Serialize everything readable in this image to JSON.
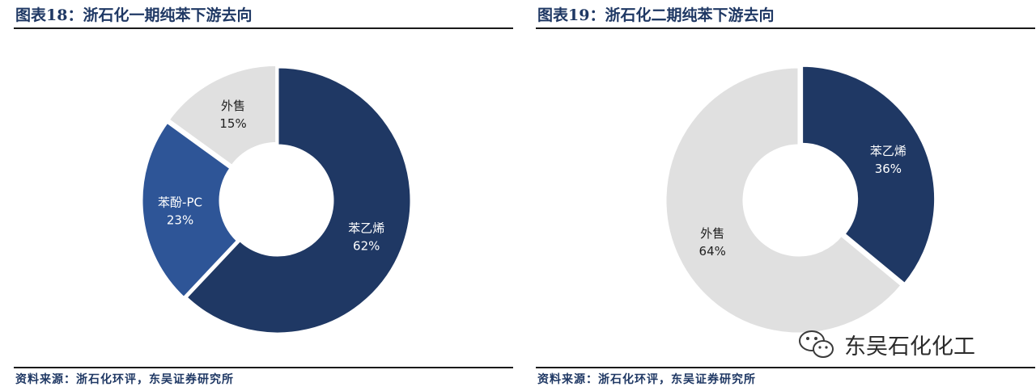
{
  "chart_data": [
    {
      "type": "pie",
      "title": "图表18：浙石化一期纯苯下游去向",
      "source": "资料来源：浙石化环评，东吴证券研究所",
      "slices": [
        {
          "label": "苯乙烯",
          "value": 62,
          "value_label": "62%",
          "color": "#1f3864",
          "text_color": "#ffffff"
        },
        {
          "label": "苯酚-PC",
          "value": 23,
          "value_label": "23%",
          "color": "#2e5597",
          "text_color": "#ffffff"
        },
        {
          "label": "外售",
          "value": 15,
          "value_label": "15%",
          "color": "#e0e0e0",
          "text_color": "#1f1f1f"
        }
      ]
    },
    {
      "type": "pie",
      "title": "图表19：浙石化二期纯苯下游去向",
      "source": "资料来源：浙石化环评，东吴证券研究所",
      "slices": [
        {
          "label": "苯乙烯",
          "value": 36,
          "value_label": "36%",
          "color": "#1f3864",
          "text_color": "#ffffff"
        },
        {
          "label": "外售",
          "value": 64,
          "value_label": "64%",
          "color": "#e0e0e0",
          "text_color": "#1f1f1f"
        }
      ]
    }
  ],
  "watermark": {
    "text": "东吴石化化工",
    "icon": "wechat-icon"
  }
}
